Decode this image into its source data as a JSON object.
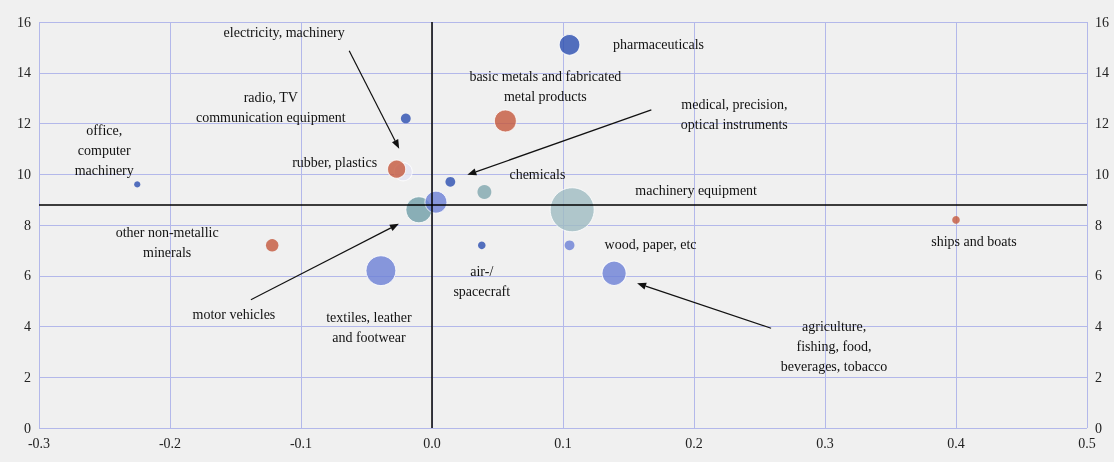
{
  "chart_data": {
    "type": "bubble",
    "x": [
      -0.225,
      -0.02,
      -0.022,
      -0.027,
      0.056,
      0.105,
      0.014,
      0.04,
      0.107,
      0.4,
      0.105,
      0.139,
      0.038,
      -0.122,
      -0.039,
      -0.01,
      0.003
    ],
    "values": [
      9.6,
      12.2,
      10.1,
      10.2,
      12.1,
      15.1,
      9.7,
      9.3,
      8.6,
      8.2,
      7.2,
      6.1,
      7.2,
      7.2,
      6.2,
      8.6,
      8.9
    ],
    "sizes": [
      0.02,
      0.05,
      0.17,
      0.17,
      0.25,
      0.22,
      0.05,
      0.1,
      1,
      0.03,
      0.05,
      0.3,
      0.03,
      0.08,
      0.46,
      0.35,
      0.25
    ],
    "colors": [
      "#2a4db0",
      "#2a4db0",
      "#e4e4f2",
      "#c4573c",
      "#c4573c",
      "#2a4db0",
      "#2a4db0",
      "#7fa6ae",
      "#9fbcc2",
      "#c4573c",
      "#6b7fd6",
      "#6b7fd6",
      "#2a4db0",
      "#c4573c",
      "#6b7fd6",
      "#6f9ea7",
      "#6b7fd6"
    ],
    "xlim": [
      -0.3,
      0.5
    ],
    "xticks": [
      -0.3,
      -0.2,
      -0.1,
      {
        "value": 0,
        "label": "0.0"
      },
      0.1,
      0.2,
      0.3,
      0.4,
      0.5
    ],
    "ylim": [
      0,
      16
    ],
    "yticks": [
      0,
      2,
      4,
      6,
      8,
      10,
      12,
      14,
      16
    ],
    "y2lim": [
      0,
      16
    ],
    "y2ticks": [
      0,
      2,
      4,
      6,
      8,
      10,
      12,
      14,
      16
    ],
    "grid": true,
    "ref_lines": [
      {
        "axis": "x",
        "value": 0,
        "color": "#000000"
      },
      {
        "axis": "y",
        "value": 8.8,
        "color": "#000000"
      }
    ],
    "annotations": [
      "office,\ncomputer\nmachinery",
      "radio, TV\ncommunication equipment",
      "electricity, machinery",
      "rubber, plastics",
      "basic metals and fabricated\nmetal products",
      "pharmaceuticals",
      "medical, precision,\noptical instruments",
      "chemicals",
      "machinery equipment",
      "ships and boats",
      "wood, paper, etc",
      "agriculture,\nfishing, food,\nbeverages, tobacco",
      "air-/\nspacecraft",
      "other non-metallic\nminerals",
      "textiles, leather\nand footwear",
      "motor vehicles"
    ]
  }
}
